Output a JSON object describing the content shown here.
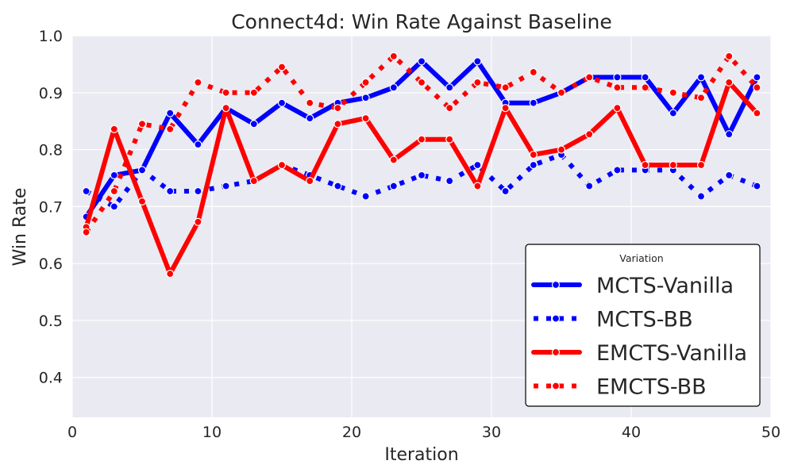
{
  "chart_data": {
    "type": "line",
    "title": "Connect4d: Win Rate Against Baseline",
    "xlabel": "Iteration",
    "ylabel": "Win Rate",
    "xlim": [
      0,
      50
    ],
    "ylim": [
      0.33,
      1.0
    ],
    "xticks": [
      0,
      10,
      20,
      30,
      40,
      50
    ],
    "yticks": [
      0.4,
      0.5,
      0.6,
      0.7,
      0.8,
      0.9,
      1.0
    ],
    "x": [
      1,
      3,
      5,
      7,
      9,
      11,
      13,
      15,
      17,
      19,
      21,
      23,
      25,
      27,
      29,
      31,
      33,
      35,
      37,
      39,
      41,
      43,
      45,
      47,
      49
    ],
    "grid": true,
    "legend": {
      "title": "Variation",
      "placement": "lower-right"
    },
    "series": [
      {
        "name": "MCTS-Vanilla",
        "color": "#0000ff",
        "style": "solid",
        "values": [
          0.682,
          0.755,
          0.764,
          0.864,
          0.809,
          0.873,
          0.845,
          0.882,
          0.855,
          0.882,
          0.891,
          0.909,
          0.955,
          0.909,
          0.955,
          0.882,
          0.882,
          0.9,
          0.927,
          0.927,
          0.927,
          0.864,
          0.927,
          0.827,
          0.927
        ]
      },
      {
        "name": "MCTS-BB",
        "color": "#0000ff",
        "style": "dotted",
        "values": [
          0.727,
          0.7,
          0.764,
          0.727,
          0.727,
          0.736,
          0.745,
          0.773,
          0.755,
          0.736,
          0.718,
          0.736,
          0.755,
          0.745,
          0.773,
          0.727,
          0.773,
          0.791,
          0.736,
          0.764,
          0.764,
          0.764,
          0.718,
          0.755,
          0.736
        ]
      },
      {
        "name": "EMCTS-Vanilla",
        "color": "#ff0000",
        "style": "solid",
        "values": [
          0.664,
          0.836,
          0.709,
          0.582,
          0.673,
          0.873,
          0.745,
          0.773,
          0.745,
          0.845,
          0.855,
          0.782,
          0.818,
          0.818,
          0.736,
          0.873,
          0.791,
          0.8,
          0.827,
          0.873,
          0.773,
          0.773,
          0.773,
          0.918,
          0.864
        ]
      },
      {
        "name": "EMCTS-BB",
        "color": "#ff0000",
        "style": "dotted",
        "values": [
          0.655,
          0.727,
          0.845,
          0.836,
          0.918,
          0.9,
          0.9,
          0.945,
          0.882,
          0.873,
          0.918,
          0.964,
          0.918,
          0.873,
          0.918,
          0.909,
          0.936,
          0.9,
          0.927,
          0.909,
          0.909,
          0.9,
          0.891,
          0.964,
          0.909
        ]
      }
    ]
  }
}
